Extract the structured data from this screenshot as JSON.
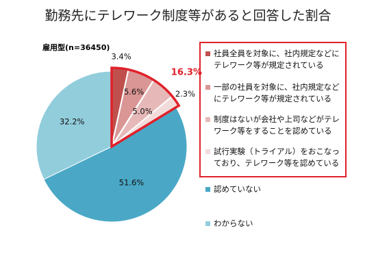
{
  "chart_data": {
    "type": "pie",
    "title": "勤務先にテレワーク制度等があると回答した割合",
    "subtitle": "雇用型(n=36450)",
    "highlight": {
      "value": 16.3,
      "label": "16.3%"
    },
    "categories": [
      "社員全員を対象に、社内規定などにテレワーク等が規定されている",
      "一部の社員を対象に、社内規定などにテレワーク等が規定されている",
      "制度はないが会社や上司などがテレワーク等をすることを認めている",
      "試行実験（トライアル）をおこなっており、テレワーク等を認めている",
      "認めていない",
      "わからない"
    ],
    "values": [
      3.4,
      5.6,
      5.0,
      2.3,
      51.6,
      32.2
    ],
    "value_labels": [
      "3.4%",
      "5.6%",
      "5.0%",
      "2.3%",
      "51.6%",
      "32.2%"
    ],
    "colors": [
      "#c0504d",
      "#d99694",
      "#e6b9b8",
      "#f2dcdb",
      "#4aa8c6",
      "#92cddc"
    ]
  }
}
